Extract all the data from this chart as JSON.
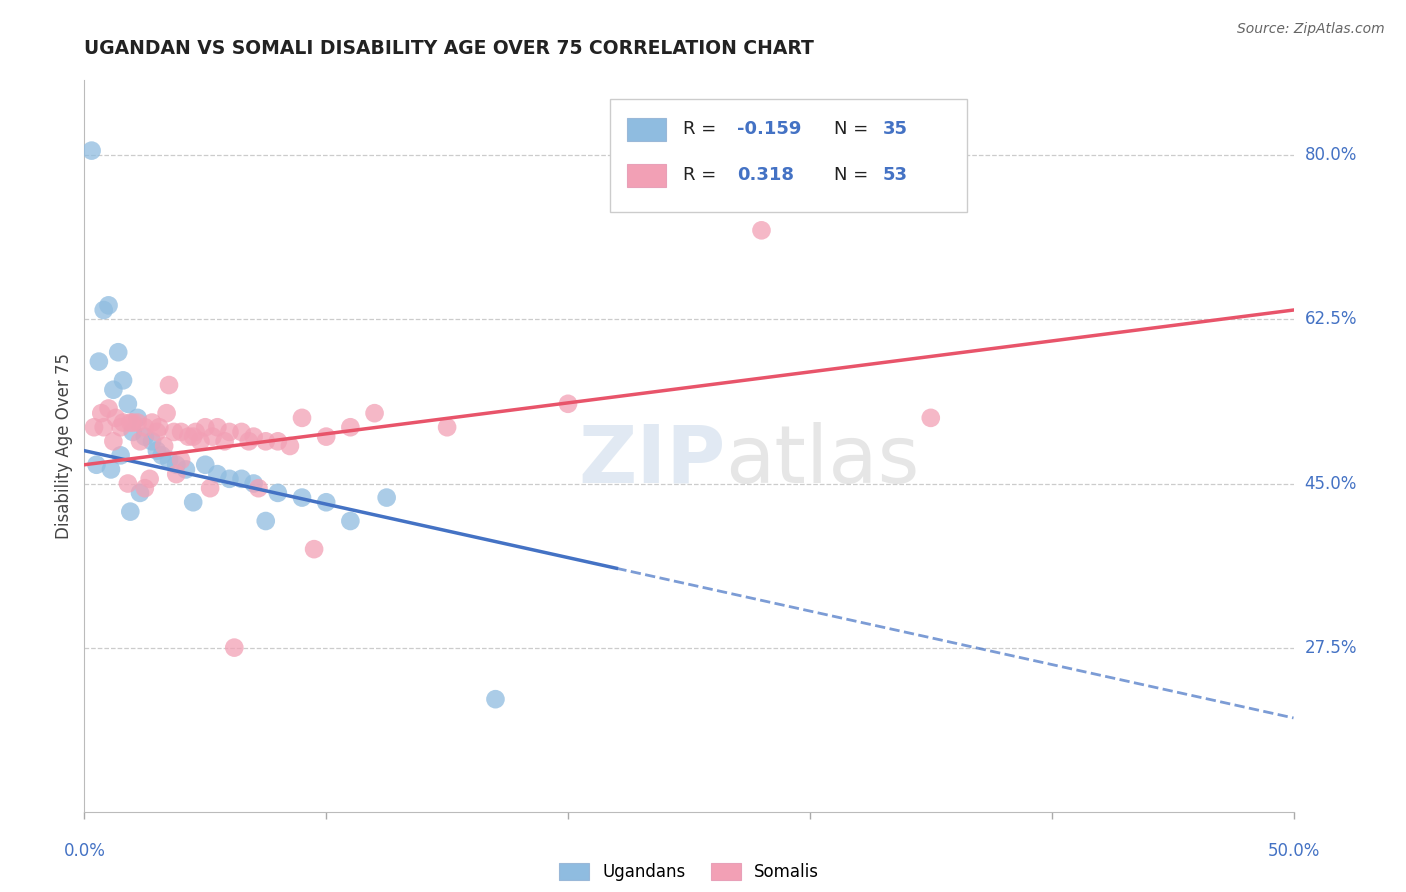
{
  "title": "UGANDAN VS SOMALI DISABILITY AGE OVER 75 CORRELATION CHART",
  "source": "Source: ZipAtlas.com",
  "ylabel": "Disability Age Over 75",
  "xlim": [
    0.0,
    50.0
  ],
  "ylim": [
    10.0,
    88.0
  ],
  "yticks": [
    27.5,
    45.0,
    62.5,
    80.0
  ],
  "ytick_labels": [
    "27.5%",
    "45.0%",
    "62.5%",
    "80.0%"
  ],
  "ugandan_color": "#8FBCE0",
  "somali_color": "#F2A0B5",
  "ugandan_line_color": "#4472C4",
  "somali_line_color": "#E8546A",
  "background_color": "#FFFFFF",
  "ugandan_x": [
    0.3,
    0.6,
    0.8,
    1.0,
    1.2,
    1.4,
    1.6,
    1.8,
    2.0,
    2.2,
    2.5,
    2.8,
    3.0,
    3.2,
    3.5,
    3.8,
    4.2,
    5.0,
    5.5,
    6.0,
    6.5,
    7.0,
    8.0,
    9.0,
    10.0,
    11.0,
    12.5,
    1.1,
    1.5,
    2.3,
    4.5,
    0.5,
    1.9,
    7.5,
    17.0
  ],
  "ugandan_y": [
    80.5,
    58.0,
    63.5,
    64.0,
    55.0,
    59.0,
    56.0,
    53.5,
    50.5,
    52.0,
    50.0,
    49.5,
    48.5,
    48.0,
    47.5,
    47.0,
    46.5,
    47.0,
    46.0,
    45.5,
    45.5,
    45.0,
    44.0,
    43.5,
    43.0,
    41.0,
    43.5,
    46.5,
    48.0,
    44.0,
    43.0,
    47.0,
    42.0,
    41.0,
    22.0
  ],
  "somali_x": [
    0.4,
    0.7,
    1.0,
    1.3,
    1.6,
    1.9,
    2.2,
    2.5,
    2.8,
    3.1,
    3.4,
    3.7,
    4.0,
    4.3,
    4.6,
    5.0,
    5.5,
    6.0,
    6.5,
    7.0,
    7.5,
    8.0,
    9.0,
    10.0,
    11.0,
    12.0,
    15.0,
    20.0,
    28.0,
    35.0,
    0.8,
    1.5,
    2.0,
    3.0,
    4.5,
    5.8,
    1.2,
    2.3,
    3.3,
    4.8,
    5.3,
    6.8,
    8.5,
    1.8,
    2.7,
    3.8,
    5.2,
    7.2,
    9.5,
    4.0,
    3.5,
    2.5,
    6.2
  ],
  "somali_y": [
    51.0,
    52.5,
    53.0,
    52.0,
    51.5,
    51.5,
    51.5,
    51.0,
    51.5,
    51.0,
    52.5,
    50.5,
    50.5,
    50.0,
    50.5,
    51.0,
    51.0,
    50.5,
    50.5,
    50.0,
    49.5,
    49.5,
    52.0,
    50.0,
    51.0,
    52.5,
    51.0,
    53.5,
    72.0,
    52.0,
    51.0,
    51.0,
    51.5,
    50.5,
    50.0,
    49.5,
    49.5,
    49.5,
    49.0,
    49.5,
    50.0,
    49.5,
    49.0,
    45.0,
    45.5,
    46.0,
    44.5,
    44.5,
    38.0,
    47.5,
    55.5,
    44.5,
    27.5
  ],
  "ug_line_x0": 0.0,
  "ug_line_y0": 48.5,
  "ug_line_x1": 50.0,
  "ug_line_y1": 20.0,
  "ug_solid_end": 22.0,
  "so_line_x0": 0.0,
  "so_line_y0": 47.0,
  "so_line_x1": 50.0,
  "so_line_y1": 63.5
}
